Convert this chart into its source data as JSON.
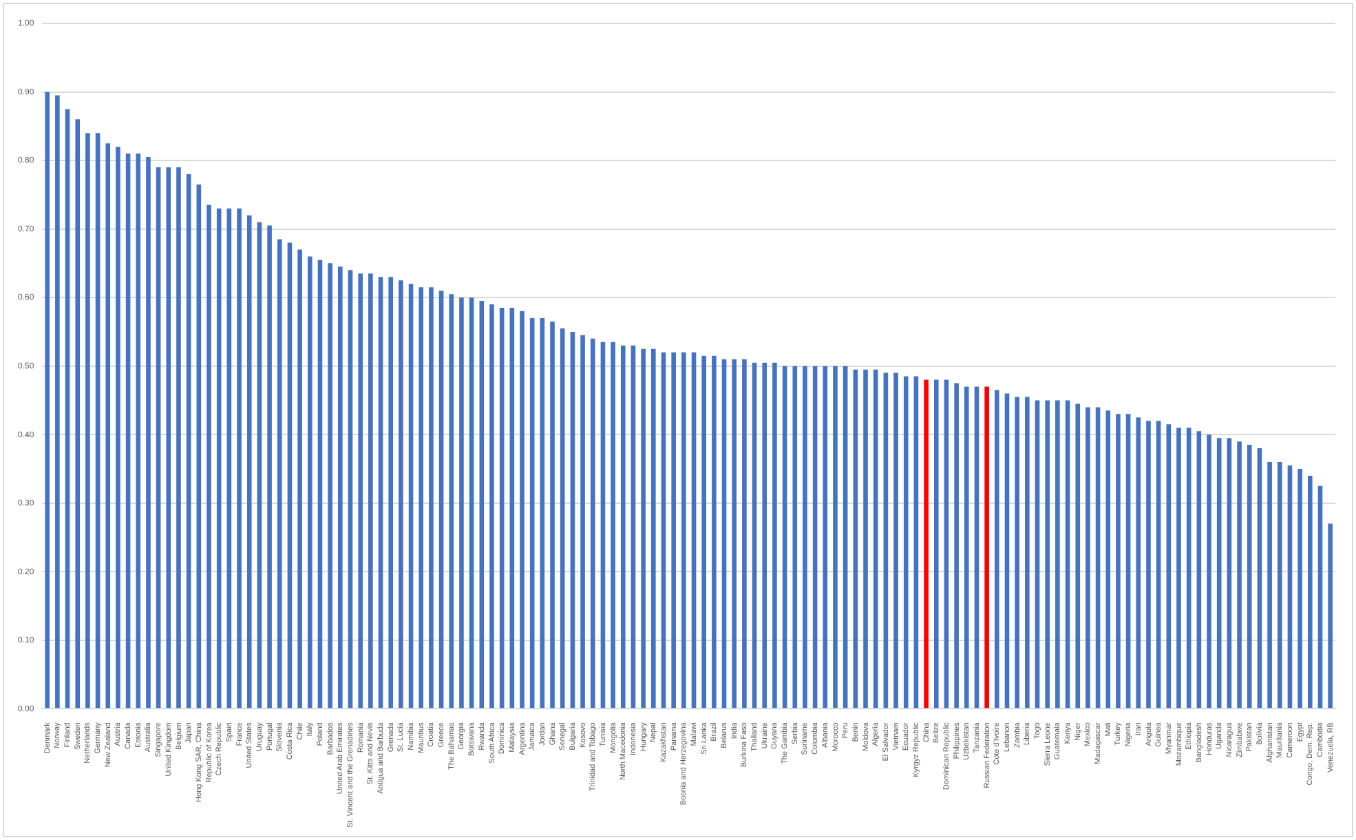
{
  "chart_data": {
    "type": "bar",
    "categories": [
      "Denmark",
      "Norway",
      "Finland",
      "Sweden",
      "Netherlands",
      "Germany",
      "New Zealand",
      "Austria",
      "Canada",
      "Estonia",
      "Australia",
      "Singapore",
      "United Kingdom",
      "Belgium",
      "Japan",
      "Hong Kong SAR, China",
      "Republic of Korea",
      "Czech Republic",
      "Spain",
      "France",
      "United States",
      "Uruguay",
      "Portugal",
      "Slovenia",
      "Costa Rica",
      "Chile",
      "Italy",
      "Poland",
      "Barbados",
      "United Arab Emirates",
      "St. Vincent and the Grenadines",
      "Romania",
      "St. Kitts and Nevis",
      "Antigua and Barbuda",
      "Grenada",
      "St. Lucia",
      "Namibia",
      "Mauritius",
      "Croatia",
      "Greece",
      "The Bahamas",
      "Georgia",
      "Botswana",
      "Rwanda",
      "South Africa",
      "Dominica",
      "Malaysia",
      "Argentina",
      "Jamaica",
      "Jordan",
      "Ghana",
      "Senegal",
      "Bulgaria",
      "Kosovo",
      "Trinidad and Tobago",
      "Tunisia",
      "Mongolia",
      "North Macedonia",
      "Indonesia",
      "Hungary",
      "Nepal",
      "Kazakhstan",
      "Panama",
      "Bosnia and Herzegovina",
      "Malawi",
      "Sri Lanka",
      "Brazil",
      "Belarus",
      "India",
      "Burkina Faso",
      "Thailand",
      "Ukraine",
      "Guyana",
      "The Gambia",
      "Serbia",
      "Suriname",
      "Colombia",
      "Albania",
      "Morocco",
      "Peru",
      "Benin",
      "Moldova",
      "Algeria",
      "El Salvador",
      "Vietnam",
      "Ecuador",
      "Kyrgyz Republic",
      "China",
      "Belize",
      "Dominican Republic",
      "Philippines",
      "Uzbekistan",
      "Tanzania",
      "Russian Federation",
      "Cote d'Ivoire",
      "Lebanon",
      "Zambia",
      "Liberia",
      "Togo",
      "Sierra Leone",
      "Guatemala",
      "Kenya",
      "Niger",
      "Mexico",
      "Madagascar",
      "Mali",
      "Turkey",
      "Nigeria",
      "Iran",
      "Angola",
      "Guinea",
      "Myanmar",
      "Mozambique",
      "Ethiopia",
      "Bangladesh",
      "Honduras",
      "Uganda",
      "Nicaragua",
      "Zimbabwe",
      "Pakistan",
      "Bolivia",
      "Afghanistan",
      "Mauritania",
      "Cameroon",
      "Egypt",
      "Congo, Dem. Rep.",
      "Cambodia",
      "Venezuela, RB"
    ],
    "values": [
      0.9,
      0.895,
      0.875,
      0.86,
      0.84,
      0.84,
      0.825,
      0.82,
      0.81,
      0.81,
      0.805,
      0.79,
      0.79,
      0.79,
      0.78,
      0.765,
      0.735,
      0.73,
      0.73,
      0.73,
      0.72,
      0.71,
      0.705,
      0.685,
      0.68,
      0.67,
      0.66,
      0.655,
      0.65,
      0.645,
      0.64,
      0.635,
      0.635,
      0.63,
      0.63,
      0.625,
      0.62,
      0.615,
      0.615,
      0.61,
      0.605,
      0.6,
      0.6,
      0.595,
      0.59,
      0.585,
      0.585,
      0.58,
      0.57,
      0.57,
      0.565,
      0.555,
      0.55,
      0.545,
      0.54,
      0.535,
      0.535,
      0.53,
      0.53,
      0.525,
      0.525,
      0.52,
      0.52,
      0.52,
      0.52,
      0.515,
      0.515,
      0.51,
      0.51,
      0.51,
      0.505,
      0.505,
      0.505,
      0.5,
      0.5,
      0.5,
      0.5,
      0.5,
      0.5,
      0.5,
      0.495,
      0.495,
      0.495,
      0.49,
      0.49,
      0.485,
      0.485,
      0.48,
      0.48,
      0.48,
      0.475,
      0.47,
      0.47,
      0.47,
      0.465,
      0.46,
      0.455,
      0.455,
      0.45,
      0.45,
      0.45,
      0.45,
      0.445,
      0.44,
      0.44,
      0.435,
      0.43,
      0.43,
      0.425,
      0.42,
      0.42,
      0.415,
      0.41,
      0.41,
      0.405,
      0.4,
      0.395,
      0.395,
      0.39,
      0.385,
      0.38,
      0.36,
      0.36,
      0.355,
      0.35,
      0.34,
      0.325,
      0.27
    ],
    "colors": [
      "#4472c4",
      "#4472c4",
      "#4472c4",
      "#4472c4",
      "#4472c4",
      "#4472c4",
      "#4472c4",
      "#4472c4",
      "#4472c4",
      "#4472c4",
      "#4472c4",
      "#4472c4",
      "#4472c4",
      "#4472c4",
      "#4472c4",
      "#4472c4",
      "#4472c4",
      "#4472c4",
      "#4472c4",
      "#4472c4",
      "#4472c4",
      "#4472c4",
      "#4472c4",
      "#4472c4",
      "#4472c4",
      "#4472c4",
      "#4472c4",
      "#4472c4",
      "#4472c4",
      "#4472c4",
      "#4472c4",
      "#4472c4",
      "#4472c4",
      "#4472c4",
      "#4472c4",
      "#4472c4",
      "#4472c4",
      "#4472c4",
      "#4472c4",
      "#4472c4",
      "#4472c4",
      "#4472c4",
      "#4472c4",
      "#4472c4",
      "#4472c4",
      "#4472c4",
      "#4472c4",
      "#4472c4",
      "#4472c4",
      "#4472c4",
      "#4472c4",
      "#4472c4",
      "#4472c4",
      "#4472c4",
      "#4472c4",
      "#4472c4",
      "#4472c4",
      "#4472c4",
      "#4472c4",
      "#4472c4",
      "#4472c4",
      "#4472c4",
      "#4472c4",
      "#4472c4",
      "#4472c4",
      "#4472c4",
      "#4472c4",
      "#4472c4",
      "#4472c4",
      "#4472c4",
      "#4472c4",
      "#4472c4",
      "#4472c4",
      "#4472c4",
      "#4472c4",
      "#4472c4",
      "#4472c4",
      "#4472c4",
      "#4472c4",
      "#4472c4",
      "#4472c4",
      "#4472c4",
      "#4472c4",
      "#4472c4",
      "#4472c4",
      "#4472c4",
      "#4472c4",
      "#ff0000",
      "#4472c4",
      "#4472c4",
      "#4472c4",
      "#4472c4",
      "#4472c4",
      "#ff0000",
      "#4472c4",
      "#4472c4",
      "#4472c4",
      "#4472c4",
      "#4472c4",
      "#4472c4",
      "#4472c4",
      "#4472c4",
      "#4472c4",
      "#4472c4",
      "#4472c4",
      "#4472c4",
      "#4472c4",
      "#4472c4",
      "#4472c4",
      "#4472c4",
      "#4472c4",
      "#4472c4",
      "#4472c4",
      "#4472c4",
      "#4472c4",
      "#4472c4",
      "#4472c4",
      "#4472c4",
      "#4472c4",
      "#4472c4",
      "#4472c4",
      "#4472c4",
      "#4472c4",
      "#4472c4",
      "#4472c4",
      "#4472c4",
      "#4472c4",
      "#4472c4"
    ],
    "ylim": [
      0,
      1
    ],
    "yticks": [
      {
        "value": 0,
        "label": "0.00"
      },
      {
        "value": 0.1,
        "label": "0.10"
      },
      {
        "value": 0.2,
        "label": "0.20"
      },
      {
        "value": 0.3,
        "label": "0.30"
      },
      {
        "value": 0.4,
        "label": "0.40"
      },
      {
        "value": 0.5,
        "label": "0.50"
      },
      {
        "value": 0.6,
        "label": "0.60"
      },
      {
        "value": 0.7,
        "label": "0.70"
      },
      {
        "value": 0.8,
        "label": "0.80"
      },
      {
        "value": 0.9,
        "label": "0.90"
      },
      {
        "value": 1,
        "label": "1.00"
      }
    ],
    "grid": "y"
  }
}
